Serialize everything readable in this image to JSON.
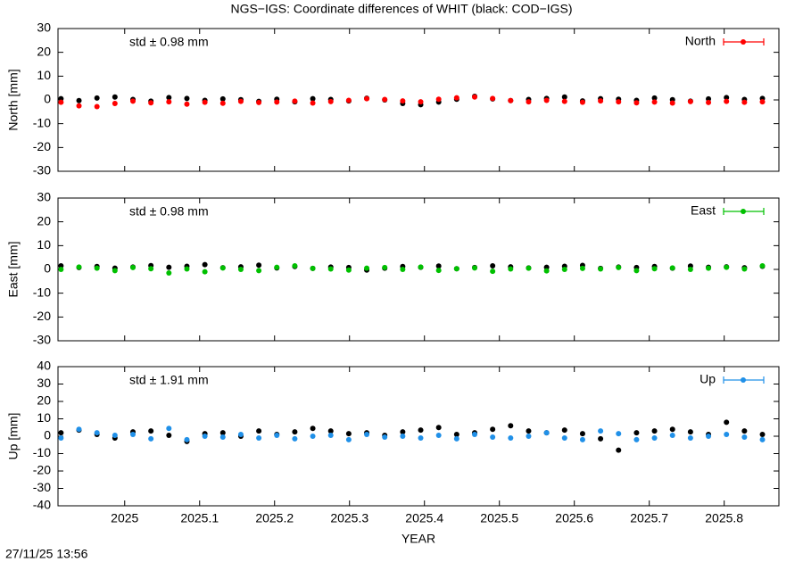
{
  "footer": "27/11/25 13:56",
  "chart_data": [
    {
      "type": "scatter",
      "title": "NGS−IGS: Coordinate differences of WHIT (black: COD−IGS)",
      "y_label": "North [mm]",
      "annotation": "std ± 0.98 mm",
      "xlim": [
        2024.911,
        2025.873
      ],
      "ylim": [
        -30,
        30
      ],
      "yticks": [
        -30,
        -20,
        -10,
        0,
        10,
        20,
        30
      ],
      "legend": "top-right",
      "x": [
        2024.915,
        2024.939,
        2024.963,
        2024.987,
        2025.011,
        2025.035,
        2025.059,
        2025.083,
        2025.107,
        2025.131,
        2025.155,
        2025.179,
        2025.203,
        2025.227,
        2025.251,
        2025.275,
        2025.299,
        2025.323,
        2025.347,
        2025.371,
        2025.395,
        2025.419,
        2025.443,
        2025.467,
        2025.491,
        2025.515,
        2025.539,
        2025.563,
        2025.587,
        2025.611,
        2025.635,
        2025.659,
        2025.683,
        2025.707,
        2025.731,
        2025.755,
        2025.779,
        2025.803,
        2025.827,
        2025.851
      ],
      "series": [
        {
          "color": "#000000",
          "values": [
            0.5,
            -0.3,
            0.8,
            1.2,
            0.2,
            -0.5,
            1.0,
            0.6,
            -0.2,
            0.4,
            0.1,
            -0.6,
            0.3,
            -0.8,
            0.5,
            0.2,
            -0.4,
            0.7,
            0.0,
            -1.5,
            -2.0,
            -0.9,
            0.3,
            1.5,
            0.4,
            -0.3,
            0.2,
            0.6,
            1.2,
            -0.4,
            0.5,
            0.3,
            -0.2,
            0.8,
            0.1,
            -0.5,
            0.4,
            1.0,
            0.2,
            0.6
          ]
        },
        {
          "name": "North",
          "color": "#ff0000",
          "values": [
            -1.0,
            -2.5,
            -2.8,
            -1.5,
            -0.5,
            -1.2,
            -0.8,
            -1.8,
            -1.0,
            -1.4,
            -0.6,
            -1.1,
            -0.9,
            -0.5,
            -1.3,
            -0.7,
            -0.2,
            0.5,
            0.2,
            -0.4,
            -0.8,
            0.3,
            0.9,
            1.2,
            0.6,
            -0.3,
            -0.8,
            -0.2,
            -0.6,
            -1.0,
            -0.4,
            -0.8,
            -1.2,
            -0.9,
            -1.3,
            -0.7,
            -1.1,
            -0.6,
            -1.0,
            -0.8
          ]
        }
      ]
    },
    {
      "type": "scatter",
      "y_label": "East [mm]",
      "annotation": "std ± 0.98 mm",
      "xlim": [
        2024.911,
        2025.873
      ],
      "ylim": [
        -30,
        30
      ],
      "yticks": [
        -30,
        -20,
        -10,
        0,
        10,
        20,
        30
      ],
      "legend": "top-right",
      "x": [
        2024.915,
        2024.939,
        2024.963,
        2024.987,
        2025.011,
        2025.035,
        2025.059,
        2025.083,
        2025.107,
        2025.131,
        2025.155,
        2025.179,
        2025.203,
        2025.227,
        2025.251,
        2025.275,
        2025.299,
        2025.323,
        2025.347,
        2025.371,
        2025.395,
        2025.419,
        2025.443,
        2025.467,
        2025.491,
        2025.515,
        2025.539,
        2025.563,
        2025.587,
        2025.611,
        2025.635,
        2025.659,
        2025.683,
        2025.707,
        2025.731,
        2025.755,
        2025.779,
        2025.803,
        2025.827,
        2025.851
      ],
      "series": [
        {
          "color": "#000000",
          "values": [
            1.5,
            0.8,
            1.2,
            0.5,
            1.0,
            1.6,
            0.9,
            1.3,
            2.0,
            0.7,
            1.1,
            1.8,
            0.6,
            1.2,
            0.4,
            1.0,
            0.8,
            -0.3,
            0.5,
            1.2,
            0.9,
            1.4,
            0.3,
            0.8,
            1.5,
            1.1,
            0.6,
            0.9,
            1.3,
            1.7,
            0.4,
            1.0,
            0.8,
            1.2,
            0.5,
            1.4,
            0.9,
            1.1,
            0.7,
            1.3
          ]
        },
        {
          "name": "East",
          "color": "#00c000",
          "values": [
            0.0,
            1.0,
            0.5,
            -0.5,
            0.8,
            0.3,
            -1.5,
            0.2,
            -1.0,
            0.6,
            0.0,
            -0.5,
            0.9,
            1.5,
            0.4,
            0.2,
            -0.3,
            0.5,
            0.8,
            0.0,
            1.0,
            -0.4,
            0.3,
            0.6,
            -0.8,
            0.2,
            0.5,
            -0.6,
            0.0,
            0.4,
            0.2,
            0.8,
            -0.5,
            0.3,
            0.6,
            0.0,
            0.5,
            0.9,
            0.2,
            1.5
          ]
        }
      ]
    },
    {
      "type": "scatter",
      "y_label": "Up [mm]",
      "x_label": "YEAR",
      "annotation": "std ± 1.91 mm",
      "xlim": [
        2024.911,
        2025.873
      ],
      "xticks": [
        2025,
        2025.1,
        2025.2,
        2025.3,
        2025.4,
        2025.5,
        2025.6,
        2025.7,
        2025.8
      ],
      "ylim": [
        -40,
        40
      ],
      "yticks": [
        -40,
        -30,
        -20,
        -10,
        0,
        10,
        20,
        30,
        40
      ],
      "legend": "top-right",
      "x": [
        2024.915,
        2024.939,
        2024.963,
        2024.987,
        2025.011,
        2025.035,
        2025.059,
        2025.083,
        2025.107,
        2025.131,
        2025.155,
        2025.179,
        2025.203,
        2025.227,
        2025.251,
        2025.275,
        2025.299,
        2025.323,
        2025.347,
        2025.371,
        2025.395,
        2025.419,
        2025.443,
        2025.467,
        2025.491,
        2025.515,
        2025.539,
        2025.563,
        2025.587,
        2025.611,
        2025.635,
        2025.659,
        2025.683,
        2025.707,
        2025.731,
        2025.755,
        2025.779,
        2025.803,
        2025.827,
        2025.851
      ],
      "series": [
        {
          "color": "#000000",
          "values": [
            2.0,
            3.5,
            1.0,
            -1.0,
            2.5,
            3.0,
            0.5,
            -3.0,
            1.5,
            2.0,
            0.0,
            3.0,
            1.0,
            2.5,
            4.5,
            3.0,
            1.5,
            2.0,
            0.5,
            2.5,
            3.5,
            5.0,
            1.0,
            2.0,
            4.0,
            6.0,
            3.0,
            2.0,
            3.5,
            1.5,
            -1.5,
            -8.0,
            2.0,
            3.0,
            4.0,
            2.5,
            1.0,
            8.0,
            3.0,
            1.0
          ]
        },
        {
          "name": "Up",
          "color": "#2090e8",
          "values": [
            -1.0,
            4.0,
            2.0,
            0.5,
            1.0,
            -1.5,
            4.5,
            -2.0,
            0.0,
            -0.5,
            1.0,
            -1.0,
            0.5,
            -1.5,
            0.0,
            0.5,
            -2.0,
            1.0,
            -0.5,
            0.0,
            -1.0,
            0.5,
            -1.5,
            1.0,
            -0.5,
            -1.0,
            0.0,
            2.0,
            -1.0,
            -2.0,
            3.0,
            1.5,
            -2.0,
            -1.0,
            0.5,
            -1.0,
            0.0,
            1.0,
            -0.5,
            -2.0
          ]
        }
      ]
    }
  ]
}
